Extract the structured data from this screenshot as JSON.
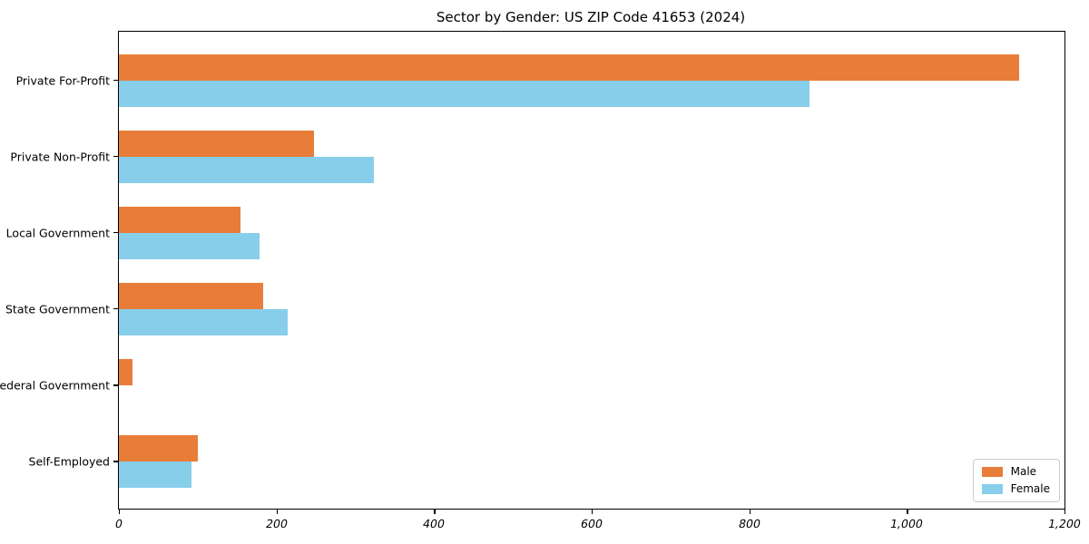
{
  "chart_data": {
    "type": "bar",
    "orientation": "horizontal",
    "title": "Sector by Gender: US ZIP Code 41653 (2024)",
    "categories": [
      "Private For-Profit",
      "Private Non-Profit",
      "Local Government",
      "State Government",
      "Federal Government",
      "Self-Employed"
    ],
    "series": [
      {
        "name": "Male",
        "color": "#e87d3a",
        "values": [
          1142,
          248,
          154,
          183,
          17,
          100
        ]
      },
      {
        "name": "Female",
        "color": "#87ceeb",
        "values": [
          876,
          324,
          179,
          214,
          0,
          92
        ]
      }
    ],
    "xlabel": "",
    "ylabel": "",
    "xlim": [
      0,
      1200
    ],
    "x_ticks": [
      0,
      200,
      400,
      600,
      800,
      1000,
      1200
    ],
    "x_tick_labels": [
      "0",
      "200",
      "400",
      "600",
      "800",
      "1,000",
      "1,200"
    ],
    "grid": false,
    "legend_position": "lower right",
    "frame_color": "#000000",
    "background_color": "#ffffff"
  }
}
